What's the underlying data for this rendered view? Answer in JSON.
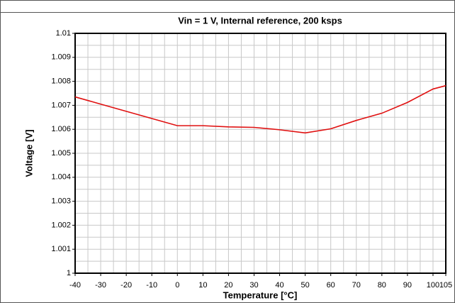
{
  "chart_data": {
    "type": "line",
    "title": "Vin = 1 V, Internal reference, 200 ksps",
    "xlabel": "Temperature [°C]",
    "ylabel": "Voltage [V]",
    "x": [
      -40,
      -30,
      -20,
      -10,
      0,
      10,
      20,
      30,
      40,
      50,
      60,
      70,
      80,
      90,
      100,
      105
    ],
    "series": [
      {
        "name": "Voltage",
        "color": "#e01010",
        "values": [
          1.00735,
          1.00705,
          1.00675,
          1.00645,
          1.00615,
          1.00615,
          1.0061,
          1.00608,
          1.00598,
          1.00585,
          1.00602,
          1.00637,
          1.00667,
          1.00712,
          1.00768,
          1.00782
        ]
      }
    ],
    "xlim": [
      -40,
      105
    ],
    "xticks": [
      -40,
      -30,
      -20,
      -10,
      0,
      10,
      20,
      30,
      40,
      50,
      60,
      70,
      80,
      90,
      100,
      105
    ],
    "ylim": [
      1,
      1.01
    ],
    "yticks": [
      1,
      1.001,
      1.002,
      1.003,
      1.004,
      1.005,
      1.006,
      1.007,
      1.008,
      1.009,
      1.01
    ],
    "grid": true
  }
}
